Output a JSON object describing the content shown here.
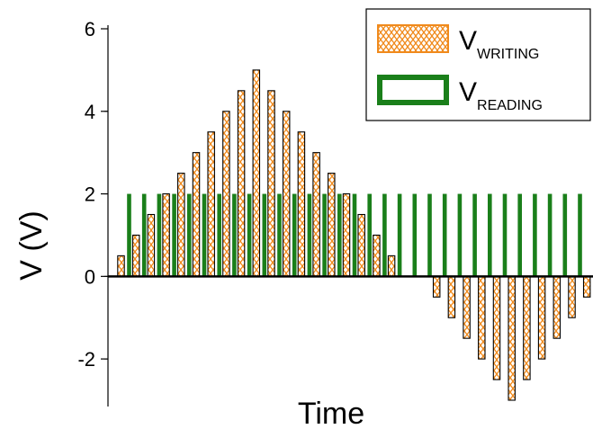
{
  "chart_data": {
    "type": "bar",
    "xlabel": "Time",
    "ylabel": "V (V)",
    "ylim": [
      -3,
      6
    ],
    "yticks": [
      6,
      4,
      2,
      0,
      -2
    ],
    "yticks_text": [
      "6",
      "4",
      "2",
      "0",
      "-2"
    ],
    "grid": false,
    "legend_position": "top-right",
    "series": [
      {
        "name_main": "V",
        "name_sub": "WRITING",
        "style": "hatched bar",
        "color": "#f08a1c",
        "values": [
          0.5,
          1.0,
          1.5,
          2.0,
          2.5,
          3.0,
          3.5,
          4.0,
          4.5,
          5.0,
          4.5,
          4.0,
          3.5,
          3.0,
          2.5,
          2.0,
          1.5,
          1.0,
          0.5,
          0,
          0,
          -0.5,
          -1.0,
          -1.5,
          -2.0,
          -2.5,
          -3.0,
          -2.5,
          -2.0,
          -1.5,
          -1.0,
          -0.5
        ]
      },
      {
        "name_main": "V",
        "name_sub": "READING",
        "style": "solid line bar",
        "color": "#1a7f1a",
        "values": [
          2,
          2,
          2,
          2,
          2,
          2,
          2,
          2,
          2,
          2,
          2,
          2,
          2,
          2,
          2,
          2,
          2,
          2,
          2,
          2,
          2,
          2,
          2,
          2,
          2,
          2,
          2,
          2,
          2,
          2,
          2,
          2
        ]
      }
    ]
  }
}
